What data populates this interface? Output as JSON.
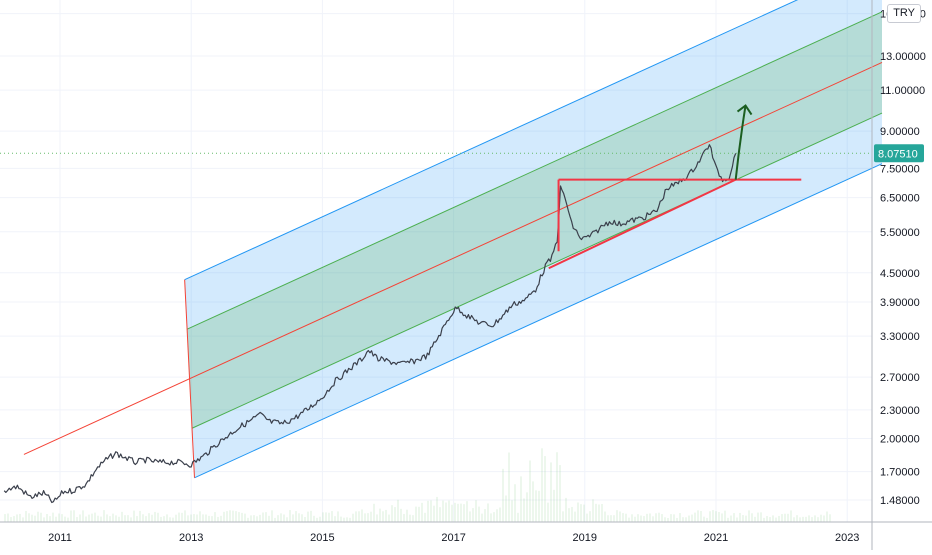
{
  "chart_data": {
    "type": "line",
    "title": "",
    "currency": "TRY",
    "y_scale": "log",
    "ylim": [
      1.3,
      16.0
    ],
    "xlim": [
      2010.12,
      2023.3
    ],
    "y_ticks": [
      {
        "value": 1.48,
        "label": "1.48000"
      },
      {
        "value": 1.7,
        "label": "1.70000"
      },
      {
        "value": 2.0,
        "label": "2.00000"
      },
      {
        "value": 2.3,
        "label": "2.30000"
      },
      {
        "value": 2.7,
        "label": "2.70000"
      },
      {
        "value": 3.3,
        "label": "3.30000"
      },
      {
        "value": 3.9,
        "label": "3.90000"
      },
      {
        "value": 4.5,
        "label": "4.50000"
      },
      {
        "value": 5.5,
        "label": "5.50000"
      },
      {
        "value": 6.5,
        "label": "6.50000"
      },
      {
        "value": 7.5,
        "label": "7.50000"
      },
      {
        "value": 9.0,
        "label": "9.00000"
      },
      {
        "value": 11.0,
        "label": "11.00000"
      },
      {
        "value": 13.0,
        "label": "13.00000"
      },
      {
        "value": 16.0,
        "label": "16.00000"
      }
    ],
    "x_ticks": [
      {
        "value": 2011,
        "label": "2011"
      },
      {
        "value": 2013,
        "label": "2013"
      },
      {
        "value": 2015,
        "label": "2015"
      },
      {
        "value": 2017,
        "label": "2017"
      },
      {
        "value": 2019,
        "label": "2019"
      },
      {
        "value": 2021,
        "label": "2021"
      },
      {
        "value": 2023,
        "label": "2023"
      }
    ],
    "last_price": {
      "value": 8.0751,
      "label": "8.07510"
    },
    "series": [
      {
        "x": [
          2010.15,
          2010.35,
          2010.55,
          2010.75,
          2010.9,
          2011.05,
          2011.2,
          2011.4,
          2011.55,
          2011.7,
          2011.85,
          2012.0,
          2012.15,
          2012.3,
          2012.5,
          2012.7,
          2012.85,
          2013.0,
          2013.2,
          2013.4,
          2013.6,
          2013.75,
          2013.9,
          2014.05,
          2014.2,
          2014.4,
          2014.6,
          2014.8,
          2015.0,
          2015.2,
          2015.4,
          2015.6,
          2015.7,
          2015.85,
          2016.0,
          2016.2,
          2016.4,
          2016.6,
          2016.8,
          2016.95,
          2017.05,
          2017.2,
          2017.4,
          2017.6,
          2017.75,
          2017.9,
          2018.1,
          2018.25,
          2018.4,
          2018.5,
          2018.58,
          2018.63,
          2018.7,
          2018.8,
          2018.95,
          2019.1,
          2019.3,
          2019.4,
          2019.5,
          2019.7,
          2019.9,
          2020.1,
          2020.25,
          2020.4,
          2020.6,
          2020.75,
          2020.9,
          2021.0,
          2021.1,
          2021.2,
          2021.3
        ],
        "y": [
          1.55,
          1.58,
          1.5,
          1.53,
          1.46,
          1.54,
          1.55,
          1.6,
          1.72,
          1.8,
          1.86,
          1.82,
          1.78,
          1.8,
          1.78,
          1.78,
          1.78,
          1.76,
          1.84,
          1.95,
          2.05,
          2.12,
          2.18,
          2.25,
          2.17,
          2.15,
          2.22,
          2.32,
          2.45,
          2.65,
          2.8,
          2.95,
          3.08,
          2.95,
          2.92,
          2.88,
          2.92,
          3.0,
          3.35,
          3.65,
          3.8,
          3.65,
          3.52,
          3.48,
          3.65,
          3.85,
          3.95,
          4.15,
          4.65,
          4.85,
          5.3,
          6.8,
          6.5,
          5.7,
          5.3,
          5.4,
          5.7,
          5.8,
          5.7,
          5.8,
          5.9,
          6.1,
          6.8,
          6.95,
          7.3,
          7.8,
          8.45,
          7.5,
          7.1,
          7.2,
          8.07
        ]
      }
    ],
    "pitchfork": {
      "pivot_a": {
        "x": 2010.45,
        "y": 1.85
      },
      "pivot_b": {
        "x": 2012.9,
        "y": 4.35
      },
      "pivot_c": {
        "x": 2013.05,
        "y": 1.65
      }
    },
    "annotations": {
      "resistance": {
        "x1": 2018.6,
        "y1": 7.1,
        "x2": 2022.3,
        "y2": 7.1
      },
      "support": {
        "x1": 2018.45,
        "y1": 4.6,
        "x2": 2021.3,
        "y2": 7.1
      },
      "projection_arrow": {
        "x1": 2021.3,
        "y1": 7.1,
        "x2": 2021.45,
        "y2": 10.2
      }
    }
  }
}
